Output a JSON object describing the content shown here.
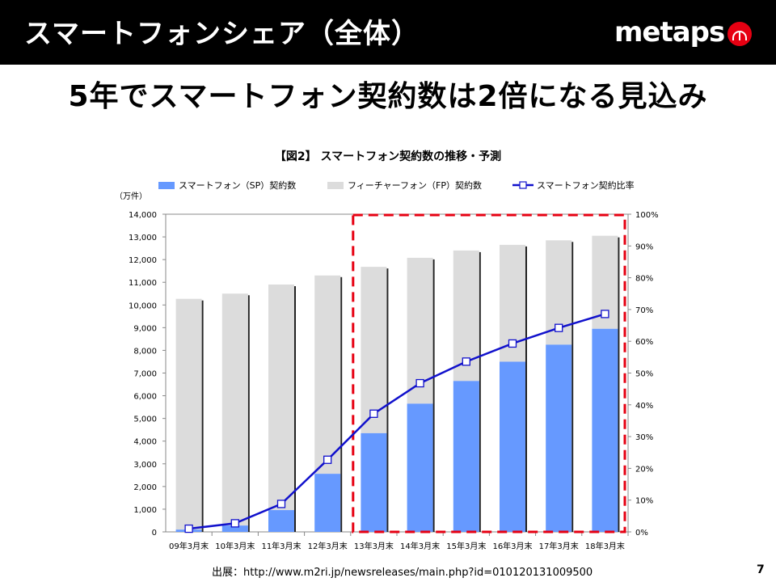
{
  "header": {
    "title": "スマートフォンシェア（全体）",
    "logo_text": "metaps",
    "logo_icon": "metaps-m-circle-icon",
    "logo_color": "#e60012"
  },
  "headline": "5年でスマートフォン契約数は2倍になる見込み",
  "footer": {
    "source": "出展：http://www.m2ri.jp/newsreleases/main.php?id=010120131009500",
    "page_number": "7"
  },
  "chart_data": {
    "type": "bar",
    "title": "【図2】 スマートフォン契約数の推移・予測",
    "y_unit_label": "（万件）",
    "categories": [
      "09年3月末",
      "10年3月末",
      "11年3月末",
      "12年3月末",
      "13年3月末",
      "14年3月末",
      "15年3月末",
      "16年3月末",
      "17年3月末",
      "18年3月末"
    ],
    "series": [
      {
        "name": "スマートフォン（SP）契約数",
        "kind": "bar-stacked",
        "color": "#6699ff",
        "values": [
          100,
          280,
          960,
          2560,
          4350,
          5650,
          6650,
          7500,
          8250,
          8950
        ]
      },
      {
        "name": "フィーチャーフォン（FP）契約数",
        "kind": "bar-stacked",
        "color": "#dcdcdc",
        "values": [
          10170,
          10220,
          9940,
          8740,
          7330,
          6430,
          5750,
          5150,
          4600,
          4100
        ]
      },
      {
        "name": "スマートフォン契約比率",
        "kind": "line-secondary",
        "color": "#1111cc",
        "values": [
          1.0,
          2.7,
          8.8,
          22.7,
          37.2,
          46.8,
          53.6,
          59.3,
          64.2,
          68.6
        ]
      }
    ],
    "ylim": [
      0,
      14000
    ],
    "y_ticks": [
      "0",
      "1,000",
      "2,000",
      "3,000",
      "4,000",
      "5,000",
      "6,000",
      "7,000",
      "8,000",
      "9,000",
      "10,000",
      "11,000",
      "12,000",
      "13,000",
      "14,000"
    ],
    "y2lim": [
      0,
      100
    ],
    "y2_ticks": [
      "0%",
      "10%",
      "20%",
      "30%",
      "40%",
      "50%",
      "60%",
      "70%",
      "80%",
      "90%",
      "100%"
    ],
    "highlight": {
      "from_category": "13年3月末",
      "to_category": "18年3月末",
      "color": "#e60012",
      "style": "dashed"
    },
    "legend_position": "top",
    "grid": false
  }
}
